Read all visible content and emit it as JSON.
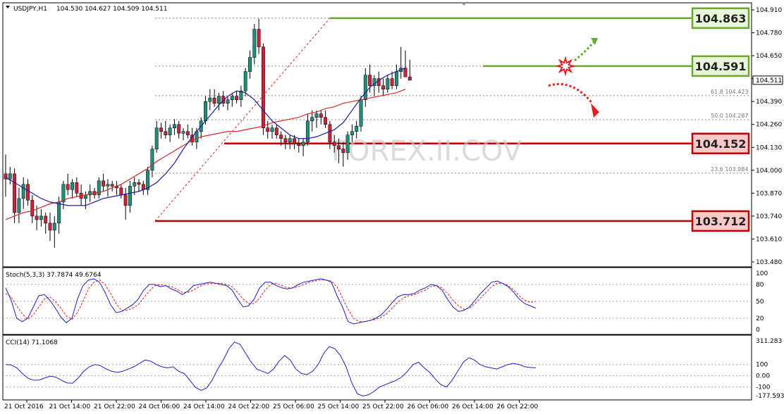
{
  "header": {
    "symbol": "USDJPY,H1",
    "ohlc": "104.530 104.627 104.509 104.511"
  },
  "colors": {
    "bull": "#1f8f7a",
    "bear": "#c8233a",
    "ma_fast": "#1b1b9a",
    "ma_slow": "#d42a2a",
    "support": "#c00000",
    "resistance": "#6aa832",
    "stoch_main": "#1f1fcf",
    "stoch_signal": "#e02020",
    "cci": "#1f1fcf"
  },
  "price_axis": {
    "ticks": [
      "104.910",
      "104.780",
      "104.650",
      "104.520",
      "104.390",
      "104.260",
      "104.130",
      "104.000",
      "103.870",
      "103.740",
      "103.610",
      "103.480"
    ],
    "current": "104.511"
  },
  "levels": {
    "r1": "104.863",
    "r2": "104.591",
    "s1": "104.152",
    "s2": "103.712"
  },
  "fib": [
    {
      "label": "61.8",
      "value": "104.423"
    },
    {
      "label": "50.0",
      "value": "104.287"
    },
    {
      "label": "23.6",
      "value": "103.984"
    }
  ],
  "watermark": "FOREX.II.COV",
  "stoch": {
    "title": "Stoch(5,3,3) 37.7874 49.6764",
    "ticks": [
      "100",
      "80",
      "50",
      "20",
      "0"
    ]
  },
  "cci": {
    "title": "CCI(14) 71.1068",
    "ticks": [
      "311.283",
      "100",
      "0.00",
      "-100",
      "-177.5939"
    ]
  },
  "time_axis": [
    "21 Oct 2016",
    "21 Oct 14:00",
    "21 Oct 22:00",
    "24 Oct 06:00",
    "24 Oct 14:00",
    "24 Oct 22:00",
    "25 Oct 06:00",
    "25 Oct 14:00",
    "25 Oct 22:00",
    "26 Oct 06:00",
    "26 Oct 14:00",
    "26 Oct 22:00"
  ],
  "chart_data": {
    "type": "candlestick",
    "symbol": "USDJPY",
    "timeframe": "H1",
    "ylim": [
      103.48,
      104.91
    ],
    "candles": [
      [
        103.98,
        104.09,
        103.85,
        103.95
      ],
      [
        103.95,
        104.02,
        103.92,
        103.98
      ],
      [
        103.98,
        104.01,
        103.7,
        103.76
      ],
      [
        103.76,
        103.9,
        103.7,
        103.84
      ],
      [
        103.84,
        103.96,
        103.78,
        103.92
      ],
      [
        103.92,
        103.95,
        103.8,
        103.83
      ],
      [
        103.83,
        103.86,
        103.7,
        103.74
      ],
      [
        103.74,
        103.8,
        103.66,
        103.72
      ],
      [
        103.72,
        103.78,
        103.68,
        103.74
      ],
      [
        103.74,
        103.76,
        103.64,
        103.7
      ],
      [
        103.7,
        103.76,
        103.6,
        103.66
      ],
      [
        103.66,
        103.74,
        103.56,
        103.7
      ],
      [
        103.7,
        103.85,
        103.64,
        103.82
      ],
      [
        103.82,
        103.94,
        103.78,
        103.92
      ],
      [
        103.92,
        103.98,
        103.86,
        103.89
      ],
      [
        103.89,
        103.95,
        103.84,
        103.93
      ],
      [
        103.93,
        103.96,
        103.85,
        103.87
      ],
      [
        103.87,
        103.92,
        103.8,
        103.84
      ],
      [
        103.84,
        103.88,
        103.78,
        103.86
      ],
      [
        103.86,
        103.92,
        103.82,
        103.88
      ],
      [
        103.88,
        103.9,
        103.84,
        103.86
      ],
      [
        103.86,
        103.96,
        103.84,
        103.94
      ],
      [
        103.94,
        103.98,
        103.88,
        103.91
      ],
      [
        103.91,
        103.95,
        103.85,
        103.92
      ],
      [
        103.92,
        103.94,
        103.88,
        103.91
      ],
      [
        103.91,
        103.94,
        103.86,
        103.9
      ],
      [
        103.9,
        103.92,
        103.84,
        103.86
      ],
      [
        103.86,
        103.9,
        103.72,
        103.8
      ],
      [
        103.8,
        103.94,
        103.76,
        103.91
      ],
      [
        103.91,
        103.96,
        103.86,
        103.93
      ],
      [
        103.93,
        103.95,
        103.88,
        103.92
      ],
      [
        103.92,
        103.94,
        103.86,
        103.89
      ],
      [
        103.89,
        104.02,
        103.86,
        104.0
      ],
      [
        104.0,
        104.14,
        103.96,
        104.12
      ],
      [
        104.12,
        104.28,
        104.1,
        104.24
      ],
      [
        104.24,
        104.27,
        104.18,
        104.22
      ],
      [
        104.22,
        104.28,
        104.18,
        104.2
      ],
      [
        104.2,
        104.26,
        104.16,
        104.24
      ],
      [
        104.24,
        104.29,
        104.2,
        104.26
      ],
      [
        104.26,
        104.28,
        104.18,
        104.21
      ],
      [
        104.21,
        104.24,
        104.17,
        104.22
      ],
      [
        104.22,
        104.26,
        104.18,
        104.2
      ],
      [
        104.2,
        104.24,
        104.14,
        104.16
      ],
      [
        104.16,
        104.24,
        104.12,
        104.22
      ],
      [
        104.22,
        104.3,
        104.18,
        104.28
      ],
      [
        104.28,
        104.42,
        104.26,
        104.39
      ],
      [
        104.39,
        104.46,
        104.34,
        104.41
      ],
      [
        104.41,
        104.46,
        104.36,
        104.38
      ],
      [
        104.38,
        104.44,
        104.34,
        104.42
      ],
      [
        104.42,
        104.45,
        104.36,
        104.38
      ],
      [
        104.38,
        104.42,
        104.34,
        104.4
      ],
      [
        104.4,
        104.44,
        104.36,
        104.42
      ],
      [
        104.42,
        104.45,
        104.38,
        104.4
      ],
      [
        104.4,
        104.48,
        104.36,
        104.45
      ],
      [
        104.45,
        104.58,
        104.42,
        104.56
      ],
      [
        104.56,
        104.68,
        104.52,
        104.64
      ],
      [
        104.64,
        104.83,
        104.6,
        104.8
      ],
      [
        104.8,
        104.86,
        104.66,
        104.7
      ],
      [
        104.7,
        104.72,
        104.2,
        104.24
      ],
      [
        104.24,
        104.28,
        104.18,
        104.22
      ],
      [
        104.22,
        104.26,
        104.18,
        104.24
      ],
      [
        104.24,
        104.26,
        104.18,
        104.2
      ],
      [
        104.2,
        104.22,
        104.14,
        104.18
      ],
      [
        104.18,
        104.2,
        104.12,
        104.16
      ],
      [
        104.16,
        104.2,
        104.12,
        104.18
      ],
      [
        104.18,
        104.2,
        104.12,
        104.15
      ],
      [
        104.15,
        104.18,
        104.1,
        104.14
      ],
      [
        104.14,
        104.18,
        104.08,
        104.16
      ],
      [
        104.16,
        104.32,
        104.14,
        104.28
      ],
      [
        104.28,
        104.34,
        104.22,
        104.3
      ],
      [
        104.3,
        104.34,
        104.24,
        104.32
      ],
      [
        104.32,
        104.34,
        104.26,
        104.3
      ],
      [
        104.3,
        104.34,
        104.24,
        104.26
      ],
      [
        104.26,
        104.28,
        104.12,
        104.16
      ],
      [
        104.16,
        104.2,
        104.1,
        104.14
      ],
      [
        104.14,
        104.18,
        104.04,
        104.12
      ],
      [
        104.12,
        104.16,
        104.02,
        104.1
      ],
      [
        104.1,
        104.22,
        104.06,
        104.2
      ],
      [
        104.2,
        104.26,
        104.16,
        104.22
      ],
      [
        104.22,
        104.28,
        104.18,
        104.25
      ],
      [
        104.25,
        104.42,
        104.22,
        104.4
      ],
      [
        104.4,
        104.58,
        104.36,
        104.54
      ],
      [
        104.54,
        104.6,
        104.44,
        104.48
      ],
      [
        104.48,
        104.54,
        104.42,
        104.52
      ],
      [
        104.52,
        104.56,
        104.44,
        104.48
      ],
      [
        104.48,
        104.52,
        104.42,
        104.46
      ],
      [
        104.46,
        104.54,
        104.44,
        104.52
      ],
      [
        104.52,
        104.56,
        104.46,
        104.48
      ],
      [
        104.48,
        104.6,
        104.46,
        104.56
      ],
      [
        104.56,
        104.7,
        104.52,
        104.58
      ],
      [
        104.58,
        104.68,
        104.53,
        104.53
      ],
      [
        104.53,
        104.627,
        104.509,
        104.511
      ]
    ],
    "ma_fast": [
      103.96,
      103.93,
      103.9,
      103.87,
      103.84,
      103.82,
      103.81,
      103.8,
      103.8,
      103.8,
      103.82,
      103.84,
      103.85,
      103.86,
      103.87,
      103.88,
      103.9,
      103.93,
      103.98,
      104.04,
      104.12,
      104.19,
      104.25,
      104.31,
      104.37,
      104.42,
      104.45,
      104.44,
      104.4,
      104.34,
      104.28,
      104.24,
      104.2,
      104.18,
      104.18,
      104.19,
      104.21,
      104.23,
      104.27,
      104.34,
      104.41,
      104.47,
      104.51,
      104.54,
      104.56,
      104.58
    ],
    "ma_slow": [
      103.72,
      103.74,
      103.76,
      103.77,
      103.79,
      103.81,
      103.82,
      103.84,
      103.85,
      103.86,
      103.87,
      103.88,
      103.9,
      103.92,
      103.95,
      103.98,
      104.01,
      104.05,
      104.08,
      104.11,
      104.14,
      104.17,
      104.19,
      104.2,
      104.21,
      104.22,
      104.22,
      104.23,
      104.24,
      104.25,
      104.27,
      104.28,
      104.29,
      104.3,
      104.32,
      104.33,
      104.35,
      104.36,
      104.38,
      104.39,
      104.4,
      104.41,
      104.42,
      104.43,
      104.44,
      104.46
    ],
    "stoch_k": [
      74,
      52,
      20,
      14,
      20,
      40,
      60,
      62,
      52,
      38,
      22,
      12,
      20,
      54,
      78,
      88,
      90,
      84,
      66,
      44,
      30,
      32,
      38,
      44,
      54,
      70,
      80,
      80,
      76,
      78,
      72,
      68,
      62,
      68,
      78,
      80,
      82,
      84,
      82,
      80,
      78,
      70,
      54,
      40,
      42,
      54,
      74,
      84,
      84,
      78,
      74,
      72,
      74,
      80,
      84,
      86,
      88,
      90,
      88,
      84,
      60,
      40,
      14,
      10,
      12,
      14,
      16,
      20,
      26,
      36,
      48,
      58,
      62,
      62,
      64,
      70,
      74,
      80,
      78,
      70,
      54,
      40,
      32,
      34,
      40,
      52,
      64,
      74,
      84,
      86,
      82,
      76,
      66,
      54,
      46,
      42,
      38
    ],
    "stoch_d": [
      64,
      58,
      42,
      28,
      18,
      26,
      40,
      54,
      58,
      50,
      38,
      24,
      18,
      30,
      50,
      72,
      84,
      88,
      80,
      64,
      46,
      34,
      34,
      38,
      44,
      56,
      68,
      78,
      80,
      78,
      76,
      72,
      66,
      66,
      70,
      76,
      80,
      82,
      82,
      82,
      80,
      76,
      66,
      54,
      46,
      46,
      56,
      70,
      80,
      82,
      78,
      74,
      74,
      76,
      80,
      84,
      86,
      88,
      88,
      86,
      76,
      56,
      36,
      20,
      14,
      14,
      16,
      18,
      22,
      28,
      38,
      48,
      56,
      60,
      62,
      66,
      70,
      76,
      78,
      74,
      64,
      52,
      42,
      36,
      38,
      46,
      56,
      66,
      76,
      82,
      82,
      78,
      70,
      60,
      52,
      48,
      50
    ],
    "cci": [
      100,
      96,
      70,
      20,
      -22,
      -40,
      -38,
      -20,
      -4,
      -12,
      -40,
      -64,
      -66,
      -20,
      40,
      80,
      100,
      90,
      60,
      40,
      30,
      40,
      60,
      80,
      110,
      140,
      130,
      100,
      80,
      70,
      80,
      40,
      20,
      -40,
      -102,
      -130,
      -110,
      -40,
      60,
      140,
      240,
      300,
      280,
      200,
      120,
      60,
      40,
      20,
      60,
      130,
      180,
      140,
      60,
      20,
      10,
      40,
      100,
      200,
      260,
      240,
      180,
      80,
      -60,
      -160,
      -180,
      -170,
      -140,
      -100,
      -80,
      -60,
      -40,
      -10,
      40,
      100,
      120,
      70,
      30,
      -30,
      -80,
      -100,
      -40,
      40,
      120,
      160,
      140,
      100,
      80,
      70,
      60,
      80,
      100,
      110,
      100,
      80,
      74,
      71
    ],
    "fib_levels": {
      "61.8": 104.423,
      "50.0": 104.287,
      "23.6": 103.984
    },
    "support_resistance": {
      "resistance": [
        104.863,
        104.591
      ],
      "support": [
        104.152,
        103.712
      ]
    }
  }
}
